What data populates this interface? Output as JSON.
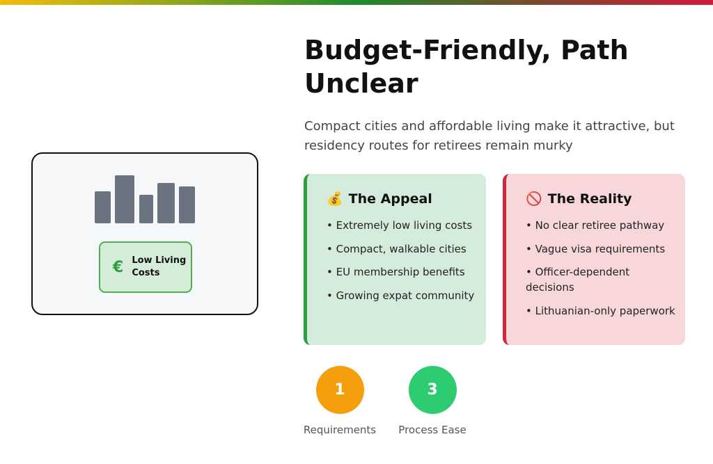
{
  "colors": {
    "accent_green": "#2e9e41",
    "accent_red": "#d0283a",
    "requirements": "#f59e0b",
    "process_ease": "#2ecc71"
  },
  "visual": {
    "icon": "bar-chart-icon",
    "badge_icon": "euro-icon",
    "badge_symbol": "€",
    "badge_label": "Low Living Costs"
  },
  "header": {
    "title": "Budget-Friendly, Path Unclear",
    "subtitle": "Compact cities and affordable living make it attractive, but residency routes for retirees remain murky"
  },
  "appeal": {
    "icon": "money-bag-icon",
    "emoji": "💰",
    "title": "The Appeal",
    "items": [
      "Extremely low living costs",
      "Compact, walkable cities",
      "EU membership benefits",
      "Growing expat community"
    ]
  },
  "reality": {
    "icon": "prohibited-icon",
    "emoji": "🚫",
    "title": "The Reality",
    "items": [
      "No clear retiree pathway",
      "Vague visa requirements",
      "Officer-dependent decisions",
      "Lithuanian-only paperwork"
    ]
  },
  "stats": [
    {
      "value": "1",
      "label": "Requirements"
    },
    {
      "value": "3",
      "label": "Process Ease"
    }
  ]
}
